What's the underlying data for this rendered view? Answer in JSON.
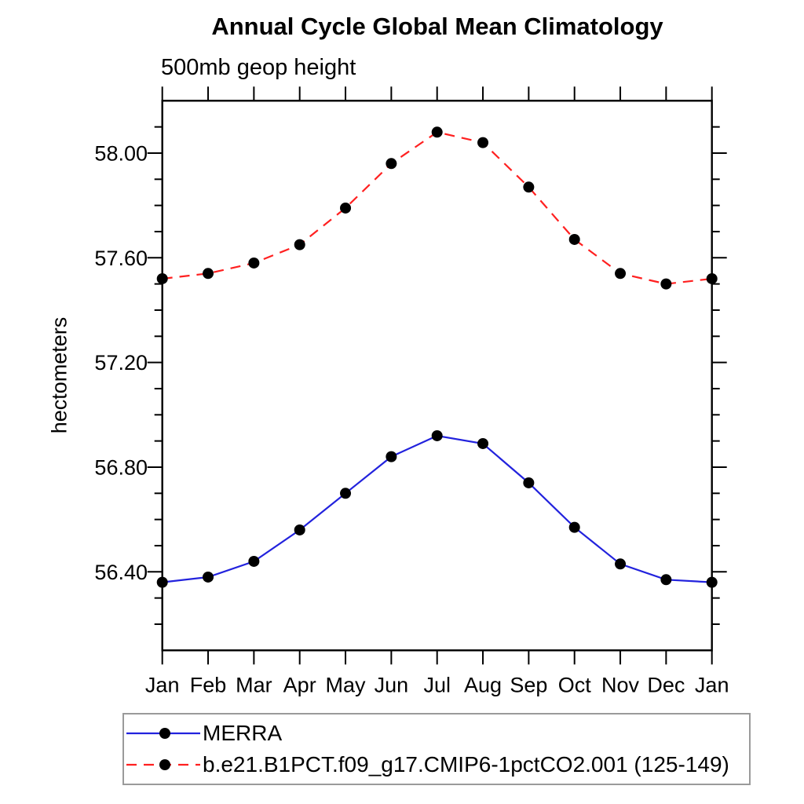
{
  "chart_data": {
    "type": "line",
    "title": "Annual Cycle Global Mean Climatology",
    "subtitle": "500mb geop height",
    "ylabel": "hectometers",
    "xlabel": "",
    "categories": [
      "Jan",
      "Feb",
      "Mar",
      "Apr",
      "May",
      "Jun",
      "Jul",
      "Aug",
      "Sep",
      "Oct",
      "Nov",
      "Dec",
      "Jan"
    ],
    "ylim": [
      56.1,
      58.2
    ],
    "ytick_major": [
      56.4,
      56.8,
      57.2,
      57.6,
      58.0
    ],
    "ytick_labels": [
      "56.40",
      "56.80",
      "57.20",
      "57.60",
      "58.00"
    ],
    "ytick_minor_step": 0.1,
    "grid": false,
    "legend_position": "bottom-left-box",
    "frame_color": "#000000",
    "marker_color": "#000000",
    "series": [
      {
        "name": "MERRA",
        "style": "solid",
        "color": "#2222dd",
        "marker": "filled-circle",
        "values": [
          56.36,
          56.38,
          56.44,
          56.56,
          56.7,
          56.84,
          56.92,
          56.89,
          56.74,
          56.57,
          56.43,
          56.37,
          56.36
        ]
      },
      {
        "name": "b.e21.B1PCT.f09_g17.CMIP6-1pctCO2.001 (125-149)",
        "style": "dashed",
        "color": "#ff2020",
        "marker": "filled-circle",
        "values": [
          57.52,
          57.54,
          57.58,
          57.65,
          57.79,
          57.96,
          58.08,
          58.04,
          57.87,
          57.67,
          57.54,
          57.5,
          57.52
        ]
      }
    ]
  }
}
